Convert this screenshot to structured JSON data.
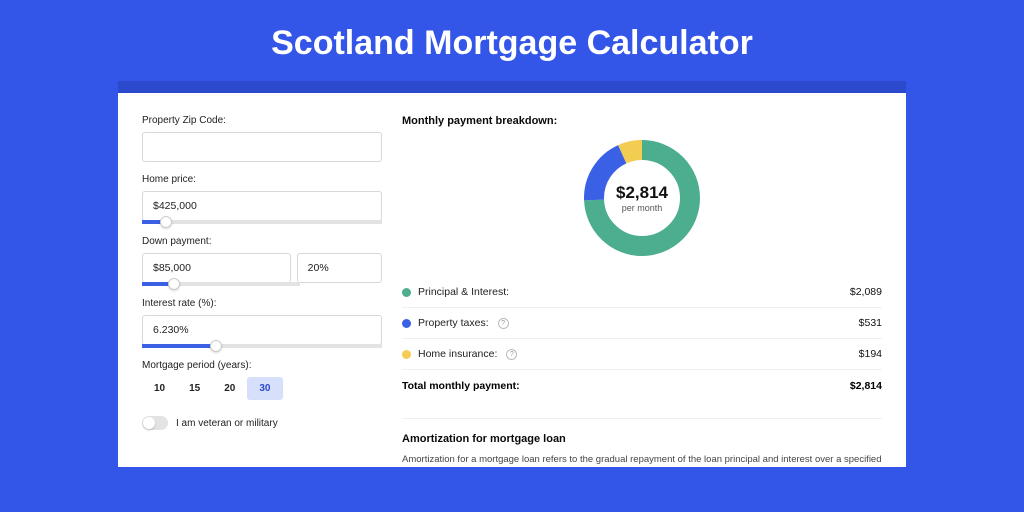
{
  "title": "Scotland Mortgage Calculator",
  "colors": {
    "page_bg": "#3355e8",
    "card_border": "#2b49cc",
    "slider_fill": "#3a60e6",
    "period_active_bg": "#d7e0fb",
    "period_active_text": "#2b49cc"
  },
  "form": {
    "zip_label": "Property Zip Code:",
    "zip_value": "",
    "home_price_label": "Home price:",
    "home_price_value": "$425,000",
    "home_price_slider_pct": 10,
    "down_label": "Down payment:",
    "down_value": "$85,000",
    "down_pct_value": "20%",
    "down_slider_pct": 20,
    "rate_label": "Interest rate (%):",
    "rate_value": "6.230%",
    "rate_slider_pct": 31,
    "period_label": "Mortgage period (years):",
    "period_options": [
      "10",
      "15",
      "20",
      "30"
    ],
    "period_selected_index": 3,
    "veteran_label": "I am veteran or military",
    "veteran_on": false
  },
  "breakdown": {
    "title": "Monthly payment breakdown:",
    "center_amount": "$2,814",
    "center_sub": "per month",
    "donut": {
      "radius": 48,
      "stroke": 20,
      "slices": [
        {
          "color": "#4cae8e",
          "pct": 74.2
        },
        {
          "color": "#3a60e6",
          "pct": 18.9
        },
        {
          "color": "#f3cc52",
          "pct": 6.9
        }
      ]
    },
    "rows": [
      {
        "dot": "#4cae8e",
        "label": "Principal & Interest:",
        "help": false,
        "value": "$2,089"
      },
      {
        "dot": "#3a60e6",
        "label": "Property taxes:",
        "help": true,
        "value": "$531"
      },
      {
        "dot": "#f3cc52",
        "label": "Home insurance:",
        "help": true,
        "value": "$194"
      }
    ],
    "total_label": "Total monthly payment:",
    "total_value": "$2,814"
  },
  "amort": {
    "title": "Amortization for mortgage loan",
    "text": "Amortization for a mortgage loan refers to the gradual repayment of the loan principal and interest over a specified"
  }
}
